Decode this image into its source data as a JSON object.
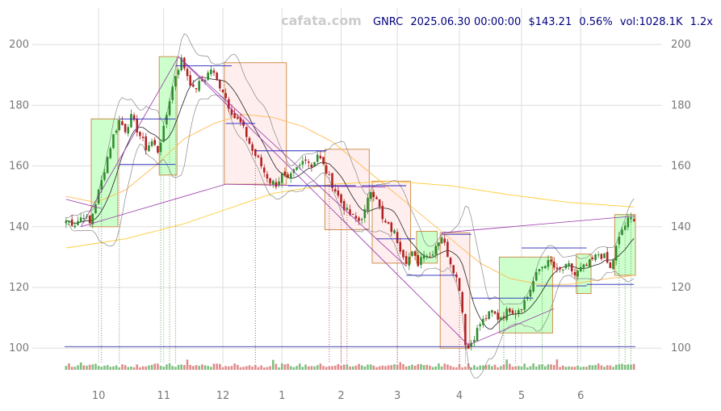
{
  "chart_data": {
    "type": "candlestick",
    "header": {
      "watermark": "cafata.com",
      "ticker": "GNRC",
      "datetime": "2025.06.30 00:00:00",
      "price": "$143.21",
      "change": "0.56%",
      "volume": "vol:1028.1K",
      "zoom": "1.2x"
    },
    "ylim": [
      95,
      212
    ],
    "yticks": [
      100,
      120,
      140,
      160,
      180,
      200
    ],
    "xticks": [
      {
        "label": "10",
        "index": 11
      },
      {
        "label": "11",
        "index": 33
      },
      {
        "label": "12",
        "index": 53
      },
      {
        "label": "1",
        "index": 73
      },
      {
        "label": "2",
        "index": 93
      },
      {
        "label": "3",
        "index": 112
      },
      {
        "label": "4",
        "index": 133
      },
      {
        "label": "5",
        "index": 154
      },
      {
        "label": "6",
        "index": 174
      }
    ],
    "n_bars": 193,
    "anchors": [
      [
        0,
        142
      ],
      [
        3,
        141
      ],
      [
        6,
        144
      ],
      [
        8,
        141
      ],
      [
        10,
        148
      ],
      [
        12,
        155
      ],
      [
        14,
        163
      ],
      [
        16,
        170
      ],
      [
        18,
        175
      ],
      [
        20,
        172
      ],
      [
        22,
        176
      ],
      [
        25,
        170
      ],
      [
        27,
        166
      ],
      [
        29,
        168
      ],
      [
        31,
        165
      ],
      [
        33,
        172
      ],
      [
        35,
        182
      ],
      [
        37,
        190
      ],
      [
        39,
        195
      ],
      [
        41,
        190
      ],
      [
        43,
        185
      ],
      [
        45,
        187
      ],
      [
        47,
        189
      ],
      [
        49,
        192
      ],
      [
        51,
        188
      ],
      [
        53,
        185
      ],
      [
        55,
        180
      ],
      [
        57,
        176
      ],
      [
        59,
        174
      ],
      [
        61,
        170
      ],
      [
        63,
        165
      ],
      [
        65,
        162
      ],
      [
        67,
        158
      ],
      [
        69,
        155
      ],
      [
        71,
        154
      ],
      [
        73,
        157
      ],
      [
        75,
        155
      ],
      [
        77,
        158
      ],
      [
        79,
        160
      ],
      [
        81,
        163
      ],
      [
        83,
        160
      ],
      [
        85,
        164
      ],
      [
        87,
        160
      ],
      [
        89,
        156
      ],
      [
        91,
        152
      ],
      [
        93,
        148
      ],
      [
        95,
        145
      ],
      [
        97,
        143
      ],
      [
        99,
        142
      ],
      [
        101,
        145
      ],
      [
        103,
        152
      ],
      [
        105,
        150
      ],
      [
        107,
        142
      ],
      [
        109,
        140
      ],
      [
        111,
        138
      ],
      [
        113,
        133
      ],
      [
        115,
        129
      ],
      [
        117,
        131
      ],
      [
        119,
        128
      ],
      [
        121,
        132
      ],
      [
        123,
        130
      ],
      [
        125,
        134
      ],
      [
        127,
        137
      ],
      [
        129,
        131
      ],
      [
        131,
        126
      ],
      [
        133,
        120
      ],
      [
        134,
        112
      ],
      [
        135,
        102
      ],
      [
        136,
        100
      ],
      [
        138,
        104
      ],
      [
        140,
        108
      ],
      [
        142,
        110
      ],
      [
        144,
        112
      ],
      [
        146,
        110
      ],
      [
        148,
        111
      ],
      [
        150,
        113
      ],
      [
        152,
        112
      ],
      [
        154,
        114
      ],
      [
        156,
        117
      ],
      [
        158,
        122
      ],
      [
        160,
        126
      ],
      [
        162,
        128
      ],
      [
        164,
        128
      ],
      [
        166,
        125
      ],
      [
        168,
        126
      ],
      [
        170,
        127
      ],
      [
        172,
        124
      ],
      [
        174,
        126
      ],
      [
        176,
        127
      ],
      [
        178,
        129
      ],
      [
        180,
        131
      ],
      [
        182,
        130
      ],
      [
        184,
        126
      ],
      [
        186,
        133
      ],
      [
        188,
        139
      ],
      [
        190,
        142
      ],
      [
        192,
        143
      ]
    ],
    "long_ma": [
      [
        0,
        133
      ],
      [
        20,
        136
      ],
      [
        40,
        141
      ],
      [
        55,
        146
      ],
      [
        70,
        151
      ],
      [
        90,
        154
      ],
      [
        110,
        155
      ],
      [
        130,
        153.5
      ],
      [
        150,
        150.5
      ],
      [
        170,
        148
      ],
      [
        192,
        146.5
      ]
    ],
    "mid_ma": [
      [
        0,
        150
      ],
      [
        10,
        148
      ],
      [
        20,
        152
      ],
      [
        30,
        160
      ],
      [
        40,
        169
      ],
      [
        50,
        174
      ],
      [
        60,
        177
      ],
      [
        70,
        176
      ],
      [
        80,
        173
      ],
      [
        90,
        168
      ],
      [
        100,
        160
      ],
      [
        110,
        152
      ],
      [
        120,
        144
      ],
      [
        130,
        136
      ],
      [
        140,
        128
      ],
      [
        150,
        123
      ],
      [
        160,
        121
      ],
      [
        170,
        121
      ],
      [
        180,
        122.5
      ],
      [
        192,
        124
      ]
    ],
    "zones": [
      {
        "i0": 9,
        "i1": 18,
        "y0": 140,
        "y1": 175.5,
        "kind": "up"
      },
      {
        "i0": 32,
        "i1": 38,
        "y0": 157,
        "y1": 196,
        "kind": "up"
      },
      {
        "i0": 54,
        "i1": 75,
        "y0": 154,
        "y1": 194,
        "kind": "down"
      },
      {
        "i0": 88,
        "i1": 103,
        "y0": 139,
        "y1": 165.5,
        "kind": "down"
      },
      {
        "i0": 104,
        "i1": 117,
        "y0": 128,
        "y1": 155,
        "kind": "down"
      },
      {
        "i0": 119,
        "i1": 126,
        "y0": 128,
        "y1": 138.5,
        "kind": "up"
      },
      {
        "i0": 127,
        "i1": 137,
        "y0": 100,
        "y1": 138,
        "kind": "down"
      },
      {
        "i0": 147,
        "i1": 165,
        "y0": 105,
        "y1": 130,
        "kind": "up"
      },
      {
        "i0": 173,
        "i1": 178,
        "y0": 118,
        "y1": 131,
        "kind": "up"
      },
      {
        "i0": 186,
        "i1": 193,
        "y0": 124,
        "y1": 144,
        "kind": "up"
      }
    ],
    "trend_lines": [
      [
        5,
        140,
        38,
        196
      ],
      [
        38,
        196,
        115,
        127
      ],
      [
        5,
        140,
        54,
        154
      ],
      [
        54,
        154,
        108,
        153
      ],
      [
        38,
        196,
        136,
        101
      ],
      [
        136,
        101,
        165,
        113
      ],
      [
        127,
        138,
        192,
        143.5
      ],
      [
        0,
        149,
        12,
        146
      ]
    ],
    "hlines": [
      [
        18,
        37,
        175.5
      ],
      [
        18,
        37,
        160.5
      ],
      [
        37,
        56,
        193
      ],
      [
        54,
        64,
        174
      ],
      [
        64,
        88,
        165
      ],
      [
        75,
        98,
        153.5
      ],
      [
        100,
        115,
        153.5
      ],
      [
        105,
        118,
        136
      ],
      [
        115,
        132,
        124
      ],
      [
        127,
        137,
        137.5
      ],
      [
        137,
        158,
        116.5
      ],
      [
        154,
        176,
        133
      ],
      [
        159,
        176,
        120.5
      ],
      [
        176,
        192,
        121
      ]
    ],
    "vmarkers": [
      {
        "i": 12,
        "kind": "up"
      },
      {
        "i": 18,
        "kind": "up"
      },
      {
        "i": 32,
        "kind": "up"
      },
      {
        "i": 35,
        "kind": "up"
      },
      {
        "i": 37,
        "kind": "up"
      },
      {
        "i": 64,
        "kind": "down"
      },
      {
        "i": 89,
        "kind": "down"
      },
      {
        "i": 93,
        "kind": "down"
      },
      {
        "i": 95,
        "kind": "down"
      },
      {
        "i": 112,
        "kind": "down"
      },
      {
        "i": 133,
        "kind": "down"
      },
      {
        "i": 135,
        "kind": "down"
      },
      {
        "i": 148,
        "kind": "up"
      },
      {
        "i": 152,
        "kind": "up"
      },
      {
        "i": 161,
        "kind": "up"
      },
      {
        "i": 173,
        "kind": "up"
      },
      {
        "i": 187,
        "kind": "up"
      },
      {
        "i": 189,
        "kind": "up"
      },
      {
        "i": 191,
        "kind": "up"
      }
    ],
    "colors": {
      "up": "#2e8b2e",
      "down": "#b22222",
      "zone_up_fill": "#ccffcc",
      "zone_down_fill": "#ffeeee",
      "zone_stroke": "#d09050",
      "trend": "#9933aa",
      "hline": "#2222bb",
      "long_ma": "#ffcc33",
      "mid_ma": "#ffbb55",
      "short_ma": "#222222",
      "band": "#888888",
      "grid": "#dddddd",
      "tick_text": "#777777",
      "header_text": "#000080",
      "watermark": "#cccccc",
      "volume_line": "#3333aa"
    }
  }
}
